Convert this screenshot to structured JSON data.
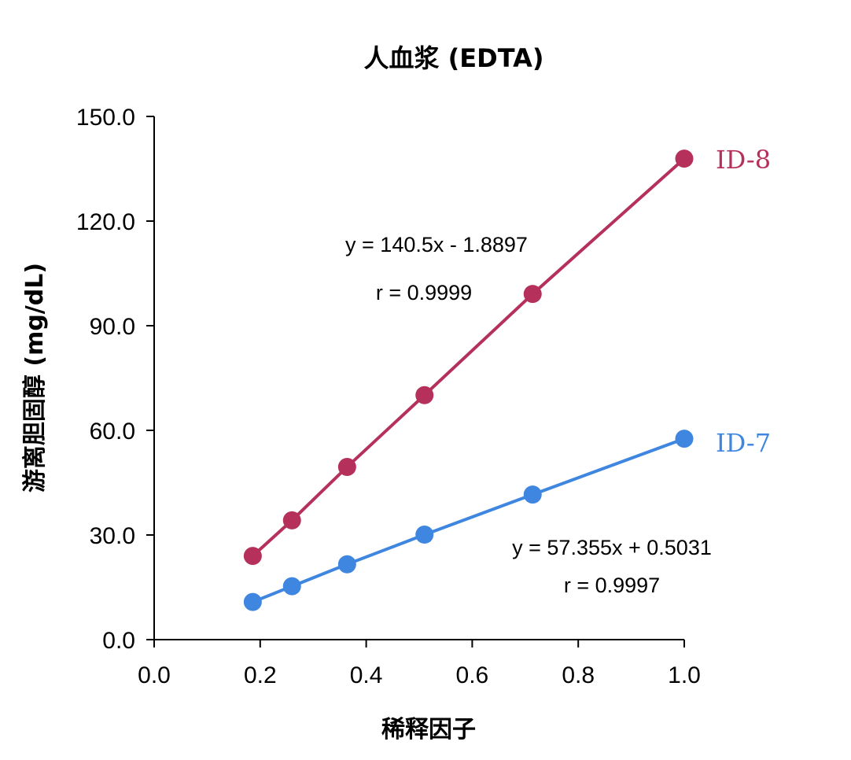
{
  "chart_data": {
    "type": "scatter",
    "title": "人血浆 (EDTA)",
    "xlabel": "稀释因子",
    "ylabel": "游离胆固醇 (mg/dL)",
    "xlim": [
      0.0,
      1.0
    ],
    "ylim": [
      0.0,
      150.0
    ],
    "x_ticks": [
      "0.0",
      "0.2",
      "0.4",
      "0.6",
      "0.8",
      "1.0"
    ],
    "y_ticks": [
      "0.0",
      "30.0",
      "60.0",
      "90.0",
      "120.0",
      "150.0"
    ],
    "grid": false,
    "series": [
      {
        "name": "ID-8",
        "color": "#b5305a",
        "x": [
          0.186,
          0.26,
          0.364,
          0.51,
          0.714,
          1.0
        ],
        "y": [
          24.0,
          34.2,
          49.5,
          70.1,
          99.1,
          137.9
        ],
        "equation": "y = 140.5x - 1.8897",
        "r": "r = 0.9999"
      },
      {
        "name": "ID-7",
        "color": "#3f86e0",
        "x": [
          0.186,
          0.26,
          0.364,
          0.51,
          0.714,
          1.0
        ],
        "y": [
          10.8,
          15.3,
          21.6,
          30.1,
          41.6,
          57.6
        ],
        "equation": "y = 57.355x + 0.5031",
        "r": "r = 0.9997"
      }
    ]
  }
}
